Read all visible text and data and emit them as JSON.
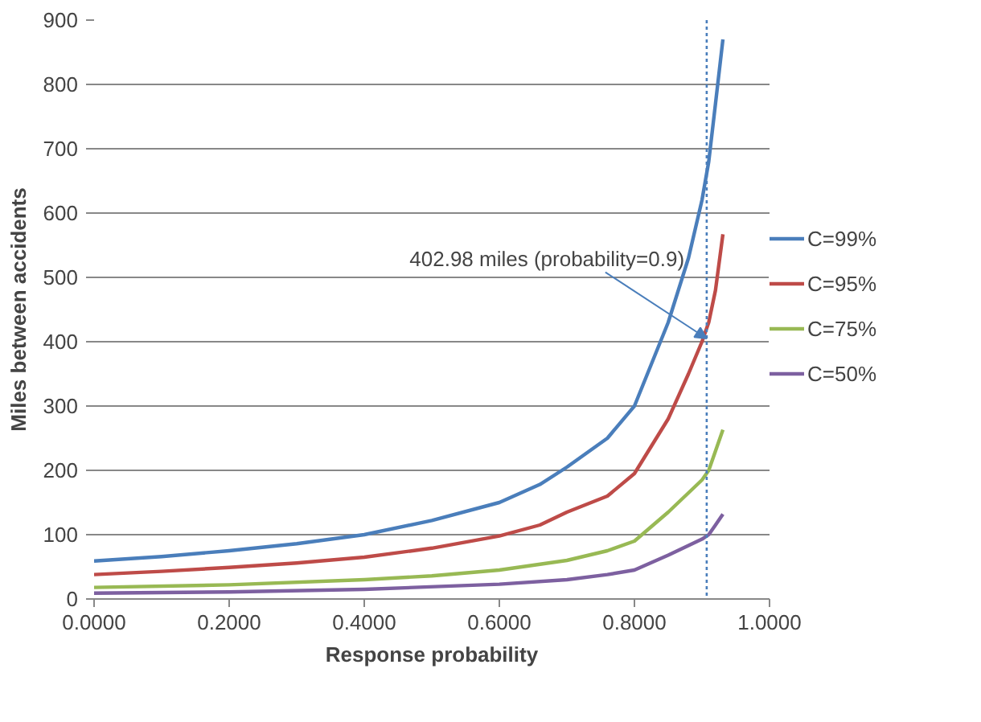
{
  "chart_data": {
    "type": "line",
    "xlabel": "Response probability",
    "ylabel": "Miles between accidents",
    "xlim": [
      0,
      1
    ],
    "ylim": [
      0,
      900
    ],
    "xticks": [
      {
        "value": 0,
        "label": "0.0000"
      },
      {
        "value": 0.2,
        "label": "0.2000"
      },
      {
        "value": 0.4,
        "label": "0.4000"
      },
      {
        "value": 0.6,
        "label": "0.6000"
      },
      {
        "value": 0.8,
        "label": "0.8000"
      },
      {
        "value": 1,
        "label": "1.0000"
      }
    ],
    "yticks": [
      0,
      100,
      200,
      300,
      400,
      500,
      600,
      700,
      800,
      900
    ],
    "grid": "y",
    "legend": "right",
    "marker": "none",
    "line_style": "solid",
    "series": [
      {
        "name": "C=99%",
        "color": "#4a7ebb",
        "x": [
          0,
          0.1,
          0.2,
          0.3,
          0.4,
          0.5,
          0.6,
          0.66,
          0.7,
          0.76,
          0.8,
          0.85,
          0.88,
          0.9,
          0.91,
          0.92,
          0.931
        ],
        "values": [
          59,
          66,
          75,
          86,
          100,
          122,
          150,
          178,
          205,
          250,
          300,
          430,
          530,
          620,
          680,
          770,
          870
        ]
      },
      {
        "name": "C=95%",
        "color": "#be4b48",
        "x": [
          0,
          0.1,
          0.2,
          0.3,
          0.4,
          0.5,
          0.6,
          0.66,
          0.7,
          0.76,
          0.8,
          0.85,
          0.88,
          0.9,
          0.91,
          0.92,
          0.931
        ],
        "values": [
          38,
          43,
          49,
          56,
          65,
          79,
          98,
          115,
          135,
          160,
          195,
          280,
          350,
          400,
          430,
          480,
          567
        ]
      },
      {
        "name": "C=75%",
        "color": "#98b954",
        "x": [
          0,
          0.2,
          0.4,
          0.5,
          0.6,
          0.7,
          0.76,
          0.8,
          0.85,
          0.9,
          0.91,
          0.92,
          0.931
        ],
        "values": [
          18,
          22,
          30,
          36,
          45,
          60,
          75,
          90,
          135,
          185,
          200,
          230,
          263
        ]
      },
      {
        "name": "C=50%",
        "color": "#7d60a0",
        "x": [
          0,
          0.2,
          0.4,
          0.6,
          0.7,
          0.76,
          0.8,
          0.85,
          0.9,
          0.91,
          0.92,
          0.931
        ],
        "values": [
          9,
          11,
          15,
          23,
          30,
          38,
          45,
          68,
          93,
          100,
          115,
          132
        ]
      }
    ],
    "ref_lines": [
      {
        "axis": "x",
        "value": 0.907,
        "color": "#4a7ebb",
        "line_style": "dotted"
      }
    ],
    "annotations": [
      {
        "text": "402.98 miles (probability=0.9)",
        "x": 0.907,
        "y": 405
      }
    ]
  }
}
